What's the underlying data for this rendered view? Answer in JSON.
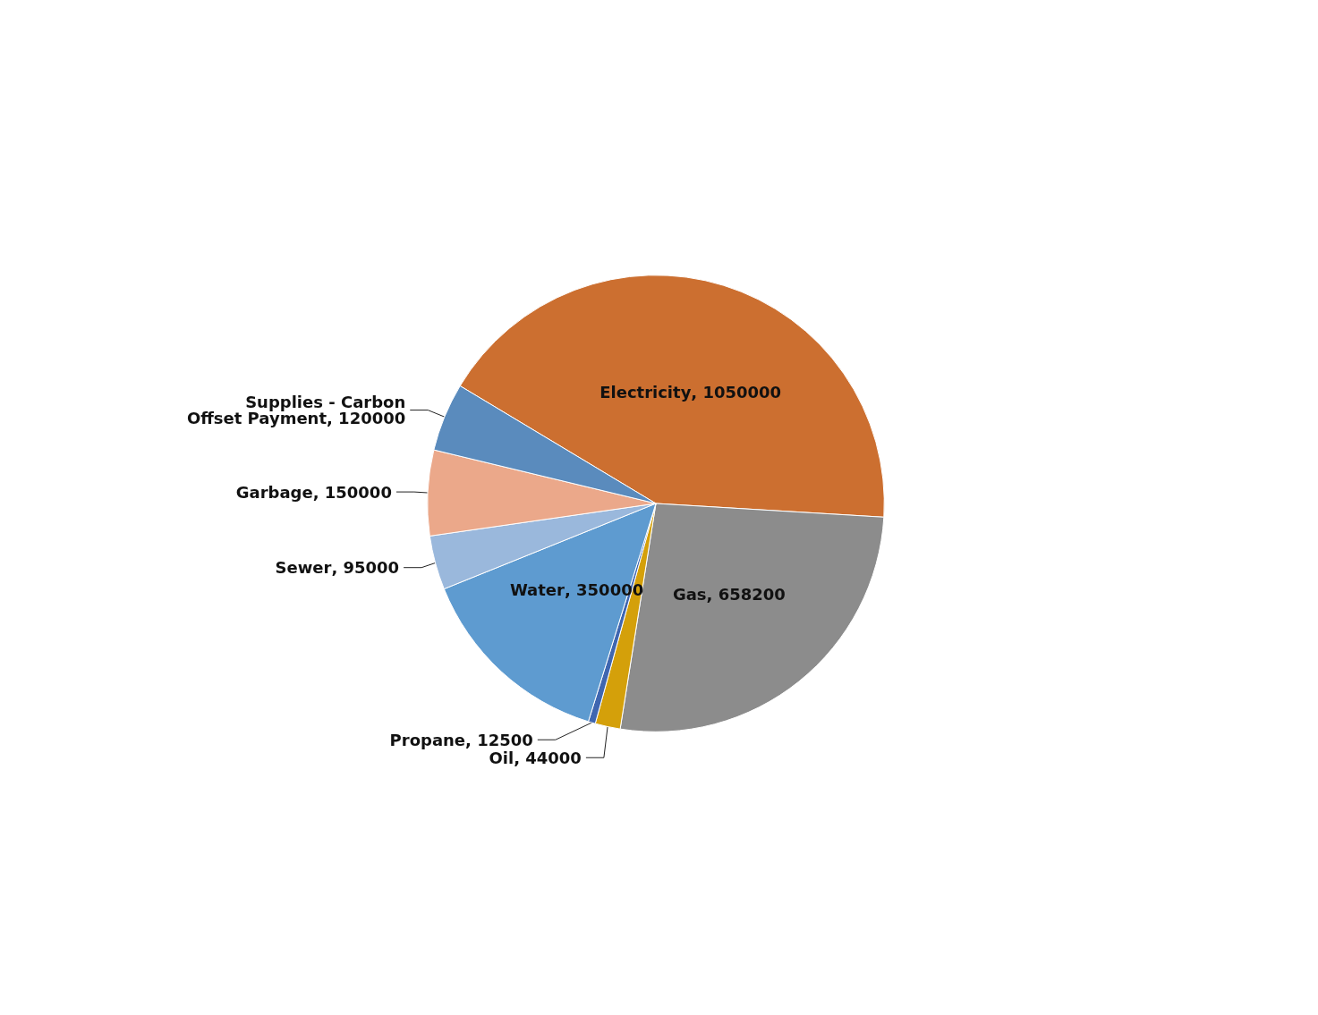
{
  "chart_data": {
    "type": "pie",
    "categories": [
      "Electricity",
      "Gas",
      "Oil",
      "Propane",
      "Water",
      "Sewer",
      "Garbage",
      "Supplies - Carbon Offset Payment"
    ],
    "values": [
      1050000,
      658200,
      44000,
      12500,
      350000,
      95000,
      150000,
      120000
    ],
    "colors": [
      "#cc6f30",
      "#8c8c8c",
      "#d4a00a",
      "#3f66b0",
      "#5e9bd0",
      "#9ab8dc",
      "#eba88a",
      "#5a8bbd"
    ],
    "value_labels": [
      ", 1050000",
      ", 658200",
      ", 44000",
      ", 12500",
      ", 350000",
      ", 95000",
      ", 150000",
      ", 120000"
    ],
    "legend": false
  }
}
